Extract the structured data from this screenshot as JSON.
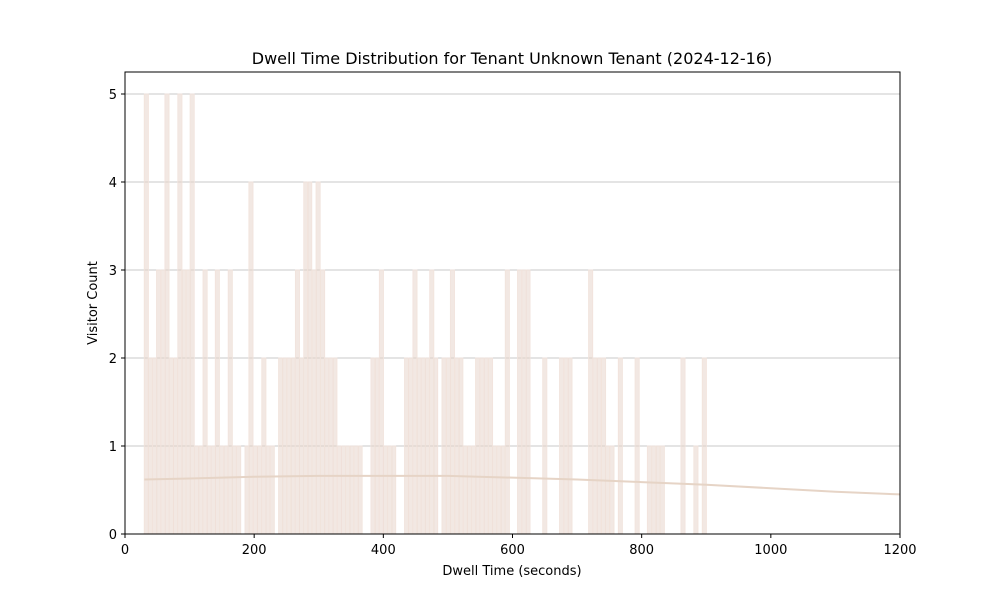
{
  "chart_data": {
    "type": "bar",
    "title": "Dwell Time Distribution for Tenant Unknown Tenant (2024-12-16)",
    "xlabel": "Dwell Time (seconds)",
    "ylabel": "Visitor Count",
    "xlim": [
      0,
      1200
    ],
    "ylim": [
      0,
      5.25
    ],
    "xticks": [
      0,
      200,
      400,
      600,
      800,
      1000,
      1200
    ],
    "yticks": [
      0,
      1,
      2,
      3,
      4,
      5
    ],
    "grid": "y",
    "legend": "none",
    "bin_width": 6.5,
    "colors": {
      "bar": "#e8d5cc",
      "bar_edge": "#f1e3dc",
      "curve": "#e6d4c6",
      "grid": "#c8c8c8"
    },
    "bins": [
      {
        "x": 33,
        "count": 5
      },
      {
        "x": 39,
        "count": 2
      },
      {
        "x": 46,
        "count": 2
      },
      {
        "x": 52,
        "count": 3
      },
      {
        "x": 59,
        "count": 3
      },
      {
        "x": 65,
        "count": 5
      },
      {
        "x": 72,
        "count": 2
      },
      {
        "x": 78,
        "count": 2
      },
      {
        "x": 85,
        "count": 5
      },
      {
        "x": 91,
        "count": 3
      },
      {
        "x": 98,
        "count": 3
      },
      {
        "x": 104,
        "count": 5
      },
      {
        "x": 111,
        "count": 1
      },
      {
        "x": 117,
        "count": 1
      },
      {
        "x": 124,
        "count": 3
      },
      {
        "x": 130,
        "count": 1
      },
      {
        "x": 137,
        "count": 1
      },
      {
        "x": 143,
        "count": 3
      },
      {
        "x": 150,
        "count": 1
      },
      {
        "x": 156,
        "count": 1
      },
      {
        "x": 163,
        "count": 3
      },
      {
        "x": 169,
        "count": 1
      },
      {
        "x": 176,
        "count": 1
      },
      {
        "x": 189,
        "count": 1
      },
      {
        "x": 195,
        "count": 4
      },
      {
        "x": 202,
        "count": 1
      },
      {
        "x": 208,
        "count": 1
      },
      {
        "x": 215,
        "count": 2
      },
      {
        "x": 221,
        "count": 1
      },
      {
        "x": 228,
        "count": 1
      },
      {
        "x": 241,
        "count": 2
      },
      {
        "x": 247,
        "count": 2
      },
      {
        "x": 254,
        "count": 2
      },
      {
        "x": 260,
        "count": 2
      },
      {
        "x": 267,
        "count": 3
      },
      {
        "x": 273,
        "count": 2
      },
      {
        "x": 280,
        "count": 4
      },
      {
        "x": 286,
        "count": 4
      },
      {
        "x": 293,
        "count": 3
      },
      {
        "x": 299,
        "count": 4
      },
      {
        "x": 306,
        "count": 3
      },
      {
        "x": 312,
        "count": 2
      },
      {
        "x": 319,
        "count": 2
      },
      {
        "x": 325,
        "count": 2
      },
      {
        "x": 332,
        "count": 1
      },
      {
        "x": 338,
        "count": 1
      },
      {
        "x": 345,
        "count": 1
      },
      {
        "x": 351,
        "count": 1
      },
      {
        "x": 358,
        "count": 1
      },
      {
        "x": 364,
        "count": 1
      },
      {
        "x": 384,
        "count": 2
      },
      {
        "x": 390,
        "count": 2
      },
      {
        "x": 397,
        "count": 3
      },
      {
        "x": 403,
        "count": 1
      },
      {
        "x": 410,
        "count": 1
      },
      {
        "x": 416,
        "count": 1
      },
      {
        "x": 436,
        "count": 2
      },
      {
        "x": 442,
        "count": 2
      },
      {
        "x": 449,
        "count": 3
      },
      {
        "x": 455,
        "count": 2
      },
      {
        "x": 462,
        "count": 2
      },
      {
        "x": 468,
        "count": 2
      },
      {
        "x": 475,
        "count": 3
      },
      {
        "x": 481,
        "count": 2
      },
      {
        "x": 494,
        "count": 2
      },
      {
        "x": 501,
        "count": 2
      },
      {
        "x": 507,
        "count": 3
      },
      {
        "x": 514,
        "count": 2
      },
      {
        "x": 520,
        "count": 2
      },
      {
        "x": 527,
        "count": 1
      },
      {
        "x": 533,
        "count": 1
      },
      {
        "x": 540,
        "count": 1
      },
      {
        "x": 546,
        "count": 2
      },
      {
        "x": 553,
        "count": 2
      },
      {
        "x": 559,
        "count": 2
      },
      {
        "x": 566,
        "count": 2
      },
      {
        "x": 572,
        "count": 1
      },
      {
        "x": 579,
        "count": 1
      },
      {
        "x": 585,
        "count": 1
      },
      {
        "x": 592,
        "count": 3
      },
      {
        "x": 611,
        "count": 3
      },
      {
        "x": 618,
        "count": 3
      },
      {
        "x": 624,
        "count": 3
      },
      {
        "x": 650,
        "count": 2
      },
      {
        "x": 676,
        "count": 2
      },
      {
        "x": 683,
        "count": 2
      },
      {
        "x": 689,
        "count": 2
      },
      {
        "x": 721,
        "count": 3
      },
      {
        "x": 728,
        "count": 2
      },
      {
        "x": 734,
        "count": 2
      },
      {
        "x": 741,
        "count": 2
      },
      {
        "x": 747,
        "count": 1
      },
      {
        "x": 754,
        "count": 1
      },
      {
        "x": 767,
        "count": 2
      },
      {
        "x": 793,
        "count": 2
      },
      {
        "x": 812,
        "count": 1
      },
      {
        "x": 819,
        "count": 1
      },
      {
        "x": 825,
        "count": 1
      },
      {
        "x": 832,
        "count": 1
      },
      {
        "x": 864,
        "count": 2
      },
      {
        "x": 884,
        "count": 1
      },
      {
        "x": 897,
        "count": 2
      }
    ],
    "density_curve": {
      "x": [
        30,
        100,
        200,
        300,
        400,
        500,
        600,
        700,
        800,
        900,
        1000,
        1100,
        1200
      ],
      "y": [
        0.62,
        0.63,
        0.65,
        0.66,
        0.66,
        0.66,
        0.64,
        0.62,
        0.59,
        0.56,
        0.52,
        0.48,
        0.45
      ]
    }
  }
}
